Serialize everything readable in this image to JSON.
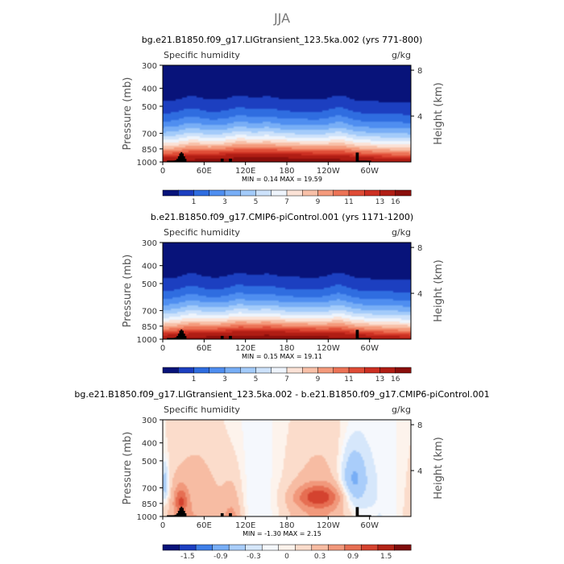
{
  "figure": {
    "season": "JJA"
  },
  "chart_data": [
    {
      "type": "heatmap",
      "title": "bg.e21.B1850.f09_g17.LIGtransient_123.5ka.002 (yrs 771-800)",
      "variable": "Specific humidity",
      "units": "g/kg",
      "ylabel": "Pressure (mb)",
      "ylabel_right": "Height (km)",
      "x_ticks": [
        "0",
        "60E",
        "120E",
        "180",
        "120W",
        "60W"
      ],
      "y_ticks": [
        "300",
        "400",
        "500",
        "700",
        "850",
        "1000"
      ],
      "y_ticks_right": [
        "8",
        "4"
      ],
      "min_max": "MIN =    0.14   MAX =   19.59",
      "colorbar_labels": [
        "1",
        "3",
        "5",
        "7",
        "9",
        "11",
        "13",
        "16"
      ],
      "colorbar_colors": [
        "#08137a",
        "#1c3fc0",
        "#2f6de0",
        "#4f8ef0",
        "#78aef6",
        "#a3cbfa",
        "#cde2fb",
        "#eef4fc",
        "#fbe2d6",
        "#f8c0a8",
        "#f49a7c",
        "#ec7356",
        "#df4c36",
        "#cc2f22",
        "#b01d14",
        "#8a0f0c"
      ],
      "mode": "absolute"
    },
    {
      "type": "heatmap",
      "title": "b.e21.B1850.f09_g17.CMIP6-piControl.001 (yrs 1171-1200)",
      "variable": "Specific humidity",
      "units": "g/kg",
      "ylabel": "Pressure (mb)",
      "ylabel_right": "Height (km)",
      "x_ticks": [
        "0",
        "60E",
        "120E",
        "180",
        "120W",
        "60W"
      ],
      "y_ticks": [
        "300",
        "400",
        "500",
        "700",
        "850",
        "1000"
      ],
      "y_ticks_right": [
        "8",
        "4"
      ],
      "min_max": "MIN =    0.15   MAX =   19.11",
      "colorbar_labels": [
        "1",
        "3",
        "5",
        "7",
        "9",
        "11",
        "13",
        "16"
      ],
      "colorbar_colors": [
        "#08137a",
        "#1c3fc0",
        "#2f6de0",
        "#4f8ef0",
        "#78aef6",
        "#a3cbfa",
        "#cde2fb",
        "#eef4fc",
        "#fbe2d6",
        "#f8c0a8",
        "#f49a7c",
        "#ec7356",
        "#df4c36",
        "#cc2f22",
        "#b01d14",
        "#8a0f0c"
      ],
      "mode": "absolute"
    },
    {
      "type": "heatmap",
      "title": "bg.e21.B1850.f09_g17.LIGtransient_123.5ka.002 - b.e21.B1850.f09_g17.CMIP6-piControl.001",
      "variable": "Specific humidity",
      "units": "g/kg",
      "ylabel": "Pressure (mb)",
      "ylabel_right": "Height (km)",
      "x_ticks": [
        "0",
        "60E",
        "120E",
        "180",
        "120W",
        "60W"
      ],
      "y_ticks": [
        "300",
        "400",
        "500",
        "700",
        "850",
        "1000"
      ],
      "y_ticks_right": [
        "8",
        "4"
      ],
      "min_max": "MIN =   -1.30   MAX =    2.15",
      "colorbar_labels": [
        "-1.5",
        "-0.9",
        "-0.3",
        "0",
        "0.3",
        "0.9",
        "1.5"
      ],
      "colorbar_colors": [
        "#08137a",
        "#1c3fc0",
        "#3f7fe8",
        "#78aef6",
        "#a9cdfa",
        "#d6e7fb",
        "#f5f8fd",
        "#fdf3ec",
        "#fbdccb",
        "#f7bca3",
        "#f1987b",
        "#e66e52",
        "#d4432f",
        "#b22317",
        "#7f0b0a"
      ],
      "mode": "difference"
    }
  ]
}
